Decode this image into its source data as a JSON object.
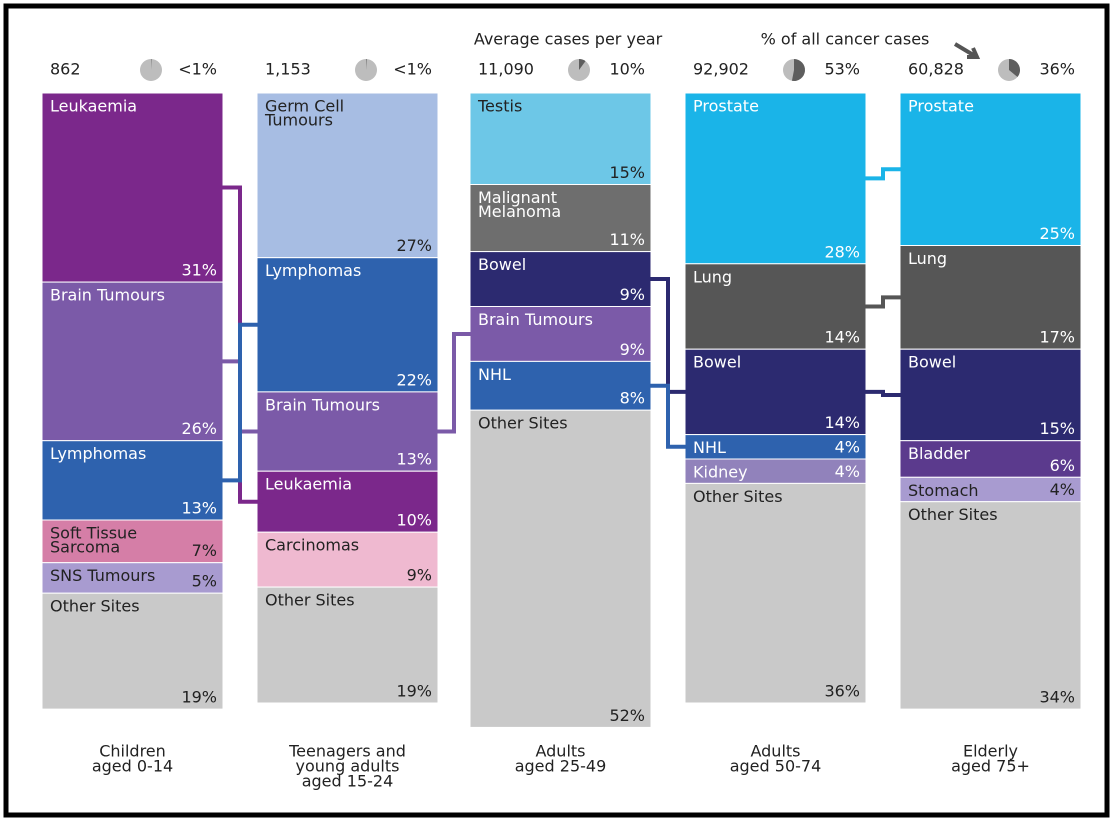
{
  "chart_data": {
    "type": "stacked_percent_columns",
    "header_cases": "Average cases per year",
    "header_share": "% of all cancer cases",
    "columns": [
      {
        "category": [
          "Children",
          "aged 0-14"
        ],
        "cases": 862,
        "cases_label": "862",
        "share": 0.7,
        "share_label": "<1%",
        "sites": [
          [
            "Leukaemia"
          ],
          [
            "Brain Tumours"
          ],
          [
            "Lymphomas"
          ],
          [
            "Soft Tissue",
            "Sarcoma"
          ],
          [
            "SNS Tumours"
          ],
          [
            "Other Sites"
          ]
        ],
        "values": [
          31,
          26,
          13,
          7,
          5,
          19
        ],
        "value_labels": [
          "31%",
          "26%",
          "13%",
          "7%",
          "5%",
          "19%"
        ],
        "colors": [
          "#7b288b",
          "#7b5aa8",
          "#2e62ae",
          "#d57ea7",
          "#a89bd0",
          "#c9c9c9"
        ]
      },
      {
        "category": [
          "Teenagers and",
          "young adults",
          "aged 15-24"
        ],
        "cases": 1153,
        "cases_label": "1,153",
        "share": 0.9,
        "share_label": "<1%",
        "sites": [
          [
            "Germ Cell",
            "Tumours"
          ],
          [
            "Lymphomas"
          ],
          [
            "Brain Tumours"
          ],
          [
            "Leukaemia"
          ],
          [
            "Carcinomas"
          ],
          [
            "Other Sites"
          ]
        ],
        "values": [
          27,
          22,
          13,
          10,
          9,
          19
        ],
        "value_labels": [
          "27%",
          "22%",
          "13%",
          "10%",
          "9%",
          "19%"
        ],
        "colors": [
          "#a7bde3",
          "#2e62ae",
          "#7b5aa8",
          "#7b288b",
          "#efb9d0",
          "#c9c9c9"
        ]
      },
      {
        "category": [
          "Adults",
          "aged 25-49"
        ],
        "cases": 11090,
        "cases_label": "11,090",
        "share": 10,
        "share_label": "10%",
        "sites": [
          [
            "Testis"
          ],
          [
            "Malignant",
            "Melanoma"
          ],
          [
            "Bowel"
          ],
          [
            "Brain Tumours"
          ],
          [
            "NHL"
          ],
          [
            "Other Sites"
          ]
        ],
        "values": [
          15,
          11,
          9,
          9,
          8,
          52
        ],
        "value_labels": [
          "15%",
          "11%",
          "9%",
          "9%",
          "8%",
          "52%"
        ],
        "colors": [
          "#6dc7e7",
          "#6e6e6e",
          "#2c2a70",
          "#7b5aa8",
          "#2e62ae",
          "#c9c9c9"
        ]
      },
      {
        "category": [
          "Adults",
          "aged 50-74"
        ],
        "cases": 92902,
        "cases_label": "92,902",
        "share": 53,
        "share_label": "53%",
        "sites": [
          [
            "Prostate"
          ],
          [
            "Lung"
          ],
          [
            "Bowel"
          ],
          [
            "NHL"
          ],
          [
            "Kidney"
          ],
          [
            "Other Sites"
          ]
        ],
        "values": [
          28,
          14,
          14,
          4,
          4,
          36
        ],
        "value_labels": [
          "28%",
          "14%",
          "14%",
          "4%",
          "4%",
          "36%"
        ],
        "colors": [
          "#1ab4e8",
          "#565656",
          "#2c2a70",
          "#2e62ae",
          "#9182bb",
          "#c9c9c9"
        ]
      },
      {
        "category": [
          "Elderly",
          "aged 75+"
        ],
        "cases": 60828,
        "cases_label": "60,828",
        "share": 36,
        "share_label": "36%",
        "sites": [
          [
            "Prostate"
          ],
          [
            "Lung"
          ],
          [
            "Bowel"
          ],
          [
            "Bladder"
          ],
          [
            "Stomach"
          ],
          [
            "Other Sites"
          ]
        ],
        "values": [
          25,
          17,
          15,
          6,
          4,
          34
        ],
        "value_labels": [
          "25%",
          "17%",
          "15%",
          "6%",
          "4%",
          "34%"
        ],
        "colors": [
          "#1ab4e8",
          "#565656",
          "#2c2a70",
          "#5b3a8d",
          "#a89bd0",
          "#c9c9c9"
        ]
      }
    ]
  }
}
